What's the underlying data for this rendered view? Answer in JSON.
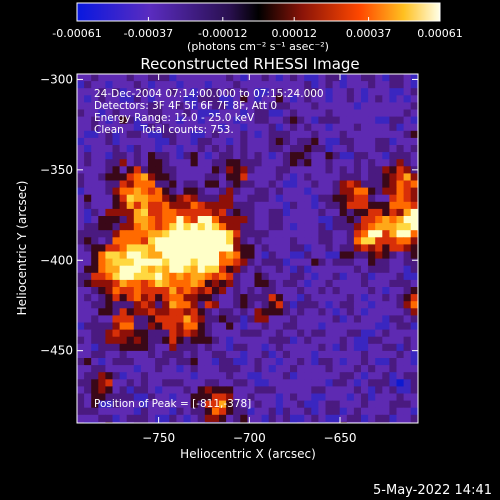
{
  "chart_data": {
    "type": "heatmap",
    "title": "Reconstructed RHESSI Image",
    "xlabel": "Heliocentric X (arcsec)",
    "ylabel": "Heliocentric Y (arcsec)",
    "xlim": [
      -795,
      -607
    ],
    "ylim": [
      -490,
      -297
    ],
    "x_ticks": [
      -750,
      -700,
      -650
    ],
    "y_ticks": [
      -300,
      -350,
      -400,
      -450
    ],
    "x_tick_labels": [
      "−750",
      "−700",
      "−650"
    ],
    "y_tick_labels": [
      "−300",
      "−350",
      "−400",
      "−450"
    ],
    "colorbar": {
      "ticks": [
        -0.00061,
        -0.00037,
        -0.00012,
        0.00012,
        0.00037,
        0.00061
      ],
      "tick_labels": [
        "-0.00061",
        "-0.00037",
        "-0.00012",
        "0.00012",
        "0.00037",
        "0.00061"
      ],
      "unit_label": "(photons cm⁻² s⁻¹ asec⁻²)"
    },
    "info_lines": [
      "24-Dec-2004 07:14:00.000 to 07:15:24.000",
      "Detectors: 3F 4F 5F 6F 7F 8F, Att 0",
      "Energy Range: 12.0 - 25.0 keV",
      "Clean     Total counts: 753."
    ],
    "peak_label": "Position of Peak = [-811,-378]",
    "footer_date": "5-May-2022 14:41",
    "colors": {
      "low": "#0a14d8",
      "mid_low": "#6a2bb8",
      "zero": "#000000",
      "mid_high": "#d03010",
      "high": "#ffffd8"
    }
  }
}
